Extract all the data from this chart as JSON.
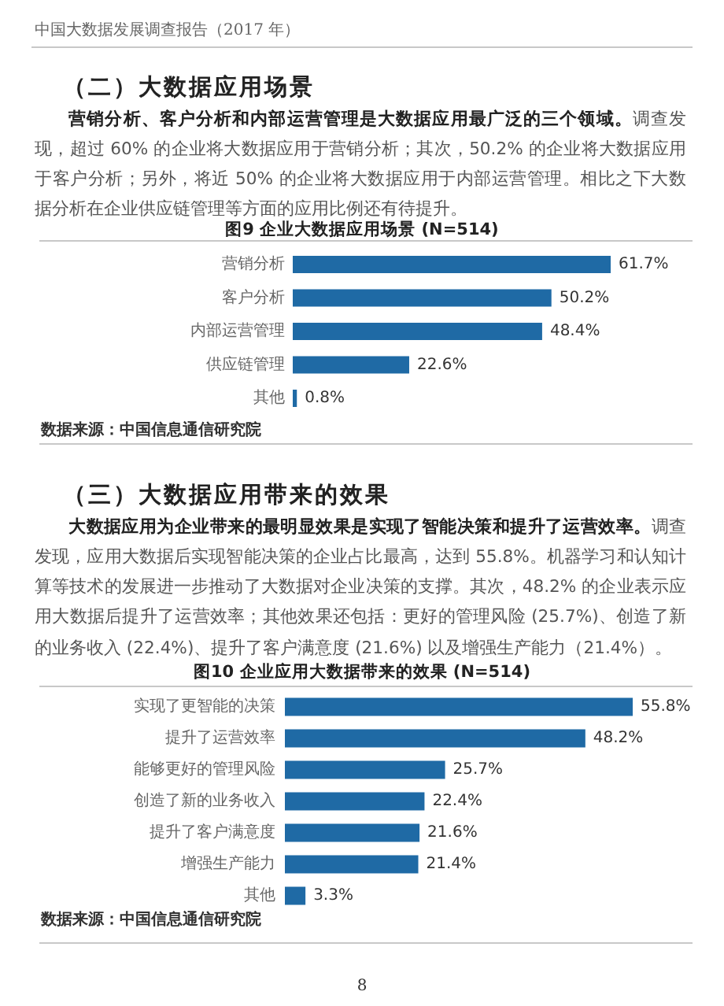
{
  "chart_data": [
    {
      "type": "bar",
      "orientation": "horizontal",
      "title": "图9 企业大数据应用场景 (N=514)",
      "categories": [
        "营销分析",
        "客户分析",
        "内部运营管理",
        "供应链管理",
        "其他"
      ],
      "values": [
        61.7,
        50.2,
        48.4,
        22.6,
        0.8
      ],
      "value_labels": [
        "61.7%",
        "50.2%",
        "48.4%",
        "22.6%",
        "0.8%"
      ],
      "color": "#1f6aa5",
      "tick_labels": "y",
      "annotations": [
        "中国大数据发展调查报告（2017 年）",
        "（二）大数据应用场景",
        "营销分析、客户分析和内部运营管理是大数据应用最广泛的三个领域。",
        "调查发现，超过 60% 的企业将大数据应用于营销分析；其次，50.2% 的企业将大数据应用于客户分析；另外，将近 50% 的企业将大数据应用于内部运营管理。相比之下大数据分析在企业供应链管理等方面的应用比例还有待提升。",
        "数据来源：中国信息通信研究院"
      ]
    },
    {
      "type": "bar",
      "orientation": "horizontal",
      "title": "图10 企业应用大数据带来的效果 (N=514)",
      "categories": [
        "实现了更智能的决策",
        "提升了运营效率",
        "能够更好的管理风险",
        "创造了新的业务收入",
        "提升了客户满意度",
        "增强生产能力",
        "其他"
      ],
      "values": [
        55.8,
        48.2,
        25.7,
        22.4,
        21.6,
        21.4,
        3.3
      ],
      "value_labels": [
        "55.8%",
        "48.2%",
        "25.7%",
        "22.4%",
        "21.6%",
        "21.4%",
        "3.3%"
      ],
      "color": "#1f6aa5",
      "tick_labels": "y",
      "annotations": [
        "（三）大数据应用带来的效果",
        "大数据应用为企业带来的最明显效果是实现了智能决策和提升了运营效率。",
        "调查发现，应用大数据后实现智能决策的企业占比最高，达到 55.8%。机器学习和认知计算等技术的发展进一步推动了大数据对企业决策的支撑。其次，48.2% 的企业表示应用大数据后提升了运营效率；其他效果还包括：更好的管理风险 (25.7%)、创造了新的业务收入 (22.4%)、提升了客户满意度 (21.6%) 以及增强生产能力（21.4%）。",
        "数据来源：中国信息通信研究院",
        "8"
      ]
    }
  ]
}
